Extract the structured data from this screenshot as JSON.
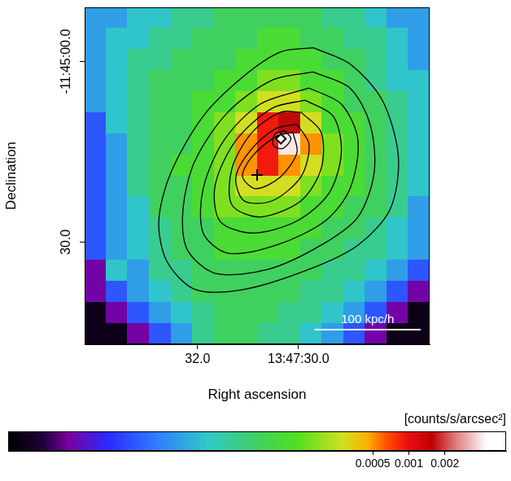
{
  "chart_data": {
    "type": "heatmap",
    "x_label": "Right ascension",
    "y_label": "Declination",
    "xlim": [
      34.24,
      27.4
    ],
    "xticks": [
      {
        "value": 32,
        "label": "32.0"
      },
      {
        "value": 30,
        "label": "13:47:30.0"
      }
    ],
    "ylim": [
      47,
      -9
    ],
    "yticks": [
      {
        "value": 0,
        "label": "-11:45:00.0"
      },
      {
        "value": 30,
        "label": "30.0"
      }
    ],
    "cells": [
      [
        1.2e-05,
        1.2e-05,
        2e-05,
        2e-05,
        3.5e-05,
        3.5e-05,
        5.5e-05,
        5.5e-05,
        5.5e-05,
        5.5e-05,
        5.5e-05,
        3.5e-05,
        3.5e-05,
        2e-05,
        1.2e-05,
        1.2e-05
      ],
      [
        1.2e-05,
        2e-05,
        2e-05,
        3.5e-05,
        3.5e-05,
        5.5e-05,
        5.5e-05,
        5.5e-05,
        9e-05,
        9e-05,
        5.5e-05,
        5.5e-05,
        3.5e-05,
        3.5e-05,
        2e-05,
        1.2e-05
      ],
      [
        1.2e-05,
        2e-05,
        3.5e-05,
        3.5e-05,
        5.5e-05,
        5.5e-05,
        5.5e-05,
        9e-05,
        9e-05,
        9e-05,
        9e-05,
        5.5e-05,
        5.5e-05,
        3.5e-05,
        2e-05,
        1.2e-05
      ],
      [
        1.2e-05,
        2e-05,
        3.5e-05,
        5.5e-05,
        5.5e-05,
        5.5e-05,
        9e-05,
        9e-05,
        0.00016,
        0.00016,
        9e-05,
        9e-05,
        5.5e-05,
        3.5e-05,
        2e-05,
        2e-05
      ],
      [
        1.2e-05,
        2e-05,
        3.5e-05,
        5.5e-05,
        5.5e-05,
        9e-05,
        9e-05,
        0.00016,
        0.00028,
        0.00028,
        0.00016,
        9e-05,
        5.5e-05,
        5.5e-05,
        3.5e-05,
        2e-05
      ],
      [
        5e-06,
        2e-05,
        3.5e-05,
        5.5e-05,
        5.5e-05,
        9e-05,
        0.00016,
        0.00028,
        0.0009,
        0.0016,
        0.00028,
        9e-05,
        9e-05,
        5.5e-05,
        3.5e-05,
        2e-05
      ],
      [
        5e-06,
        1.2e-05,
        3.5e-05,
        5.5e-05,
        5.5e-05,
        9e-05,
        0.00016,
        0.0005,
        0.0009,
        0.004,
        0.0005,
        0.00016,
        9e-05,
        5.5e-05,
        3.5e-05,
        2e-05
      ],
      [
        5e-06,
        1.2e-05,
        3.5e-05,
        5.5e-05,
        9e-05,
        9e-05,
        0.00016,
        0.0005,
        0.0009,
        0.0005,
        0.00028,
        0.00016,
        9e-05,
        5.5e-05,
        3.5e-05,
        2e-05
      ],
      [
        5e-06,
        1.2e-05,
        3.5e-05,
        5.5e-05,
        5.5e-05,
        9e-05,
        0.00016,
        0.00028,
        0.00028,
        0.00028,
        0.00016,
        9e-05,
        9e-05,
        5.5e-05,
        3.5e-05,
        2e-05
      ],
      [
        5e-06,
        1.2e-05,
        2e-05,
        5.5e-05,
        5.5e-05,
        9e-05,
        0.00016,
        0.00016,
        0.00016,
        0.00016,
        9e-05,
        9e-05,
        5.5e-05,
        5.5e-05,
        3.5e-05,
        1.2e-05
      ],
      [
        5e-06,
        1.2e-05,
        2e-05,
        3.5e-05,
        5.5e-05,
        5.5e-05,
        9e-05,
        9e-05,
        9e-05,
        9e-05,
        9e-05,
        5.5e-05,
        5.5e-05,
        3.5e-05,
        2e-05,
        1.2e-05
      ],
      [
        5e-06,
        1.2e-05,
        2e-05,
        3.5e-05,
        5.5e-05,
        5.5e-05,
        9e-05,
        9e-05,
        9e-05,
        9e-05,
        5.5e-05,
        5.5e-05,
        3.5e-05,
        3.5e-05,
        2e-05,
        1.2e-05
      ],
      [
        1.5e-06,
        2e-05,
        1.2e-05,
        3.5e-05,
        3.5e-05,
        5.5e-05,
        5.5e-05,
        5.5e-05,
        5.5e-05,
        5.5e-05,
        5.5e-05,
        3.5e-05,
        3.5e-05,
        2e-05,
        1.2e-05,
        5e-06
      ],
      [
        1.5e-06,
        5e-06,
        1.2e-05,
        2e-05,
        3.5e-05,
        5.5e-05,
        5.5e-05,
        5.5e-05,
        5.5e-05,
        5.5e-05,
        3.5e-05,
        3.5e-05,
        2e-05,
        1.2e-05,
        5e-06,
        1.5e-06
      ],
      [
        6e-07,
        1.5e-06,
        5e-06,
        1.2e-05,
        2e-05,
        3.5e-05,
        5.5e-05,
        5.5e-05,
        5.5e-05,
        3.5e-05,
        3.5e-05,
        2e-05,
        1.2e-05,
        5e-06,
        1.5e-06,
        6e-07
      ],
      [
        6e-07,
        6e-07,
        1.5e-06,
        5e-06,
        1.2e-05,
        3.5e-05,
        5.5e-05,
        5.5e-05,
        3.5e-05,
        3.5e-05,
        2e-05,
        1.2e-05,
        5e-06,
        1.5e-06,
        6e-07,
        6e-07
      ]
    ],
    "colorbar": {
      "label": "[counts/s/arcsec²]",
      "range": [
        4.5e-07,
        0.0065
      ],
      "ticks": [
        0.0005,
        0.001,
        0.002
      ],
      "log": true
    },
    "contours": {
      "color": "#000000",
      "lines": [
        [
          [
            29.71,
            -2.28
          ],
          [
            28.98,
            0.4
          ],
          [
            28.34,
            6.43
          ],
          [
            28.02,
            15.8
          ],
          [
            28.18,
            24.5
          ],
          [
            28.82,
            30.52
          ],
          [
            29.79,
            34.54
          ],
          [
            31.08,
            37.88
          ],
          [
            32.05,
            37.88
          ],
          [
            32.61,
            33.2
          ],
          [
            32.77,
            26.51
          ],
          [
            32.53,
            18.47
          ],
          [
            31.89,
            9.1
          ],
          [
            31.08,
            2.41
          ],
          [
            30.35,
            -1.61
          ]
        ],
        [
          [
            29.71,
            1.74
          ],
          [
            28.98,
            4.42
          ],
          [
            28.58,
            10.44
          ],
          [
            28.5,
            18.47
          ],
          [
            28.82,
            25.84
          ],
          [
            29.55,
            30.52
          ],
          [
            30.6,
            34.54
          ],
          [
            31.65,
            35.21
          ],
          [
            32.21,
            31.19
          ],
          [
            32.29,
            24.5
          ],
          [
            32.05,
            16.47
          ],
          [
            31.4,
            8.43
          ],
          [
            30.52,
            3.08
          ]
        ],
        [
          [
            29.79,
            4.42
          ],
          [
            29.15,
            7.1
          ],
          [
            28.82,
            13.12
          ],
          [
            28.98,
            21.15
          ],
          [
            29.47,
            26.51
          ],
          [
            30.44,
            30.52
          ],
          [
            31.4,
            31.86
          ],
          [
            31.89,
            28.51
          ],
          [
            31.89,
            21.15
          ],
          [
            31.48,
            13.12
          ],
          [
            30.76,
            7.1
          ]
        ],
        [
          [
            29.87,
            6.43
          ],
          [
            29.31,
            9.1
          ],
          [
            29.15,
            15.13
          ],
          [
            29.39,
            21.82
          ],
          [
            30.03,
            26.51
          ],
          [
            30.92,
            28.51
          ],
          [
            31.56,
            26.51
          ],
          [
            31.65,
            20.48
          ],
          [
            31.24,
            13.12
          ],
          [
            30.52,
            7.76
          ]
        ],
        [
          [
            29.95,
            8.43
          ],
          [
            29.55,
            11.78
          ],
          [
            29.55,
            17.8
          ],
          [
            29.95,
            23.16
          ],
          [
            30.76,
            25.84
          ],
          [
            31.32,
            23.83
          ],
          [
            31.32,
            17.8
          ],
          [
            30.92,
            11.78
          ],
          [
            30.35,
            8.43
          ]
        ],
        [
          [
            30.03,
            10.44
          ],
          [
            29.79,
            13.79
          ],
          [
            29.95,
            19.14
          ],
          [
            30.52,
            23.16
          ],
          [
            31.08,
            23.16
          ],
          [
            31.24,
            19.14
          ],
          [
            30.92,
            14.46
          ],
          [
            30.44,
            11.11
          ]
        ],
        [
          [
            30.11,
            11.78
          ],
          [
            30.03,
            15.13
          ],
          [
            30.35,
            19.14
          ],
          [
            30.84,
            21.15
          ],
          [
            31.11,
            19.14
          ],
          [
            30.92,
            15.8
          ],
          [
            30.44,
            12.45
          ]
        ],
        [
          [
            30.27,
            11.51
          ],
          [
            30.15,
            12.85
          ],
          [
            30.31,
            14.46
          ],
          [
            30.5,
            13.92
          ],
          [
            30.47,
            12.05
          ]
        ]
      ]
    },
    "markers": [
      {
        "marker": "cross",
        "x": 30.82,
        "y": 18.88,
        "color": "#000000"
      },
      {
        "marker": "diamond",
        "x": 30.35,
        "y": 12.85,
        "color": "#000000"
      }
    ],
    "annotations": [
      {
        "text": "100 kpc/h",
        "x": [
          29.68,
          27.58
        ],
        "y": 44.56,
        "color": "#ffffff"
      }
    ]
  }
}
